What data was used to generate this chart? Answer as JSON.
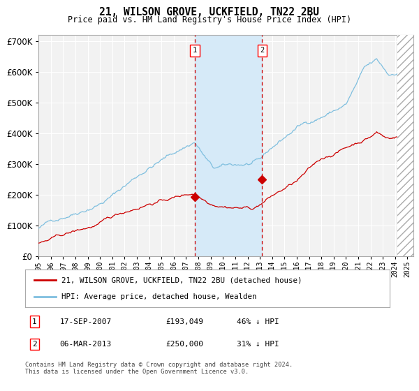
{
  "title": "21, WILSON GROVE, UCKFIELD, TN22 2BU",
  "subtitle": "Price paid vs. HM Land Registry's House Price Index (HPI)",
  "legend_line1": "21, WILSON GROVE, UCKFIELD, TN22 2BU (detached house)",
  "legend_line2": "HPI: Average price, detached house, Wealden",
  "transaction1_date": "17-SEP-2007",
  "transaction1_price": "£193,049",
  "transaction1_hpi": "46% ↓ HPI",
  "transaction2_date": "06-MAR-2013",
  "transaction2_price": "£250,000",
  "transaction2_hpi": "31% ↓ HPI",
  "footer": "Contains HM Land Registry data © Crown copyright and database right 2024.\nThis data is licensed under the Open Government Licence v3.0.",
  "hpi_color": "#7fbfdf",
  "price_color": "#cc0000",
  "bg_color": "#ffffff",
  "plot_bg": "#f0f0f0",
  "grid_color": "#ffffff",
  "highlight_color": "#d6eaf8",
  "transaction1_x": 2007.72,
  "transaction2_x": 2013.18,
  "t1_price": 193049,
  "t2_price": 250000,
  "ylim_max": 720000
}
